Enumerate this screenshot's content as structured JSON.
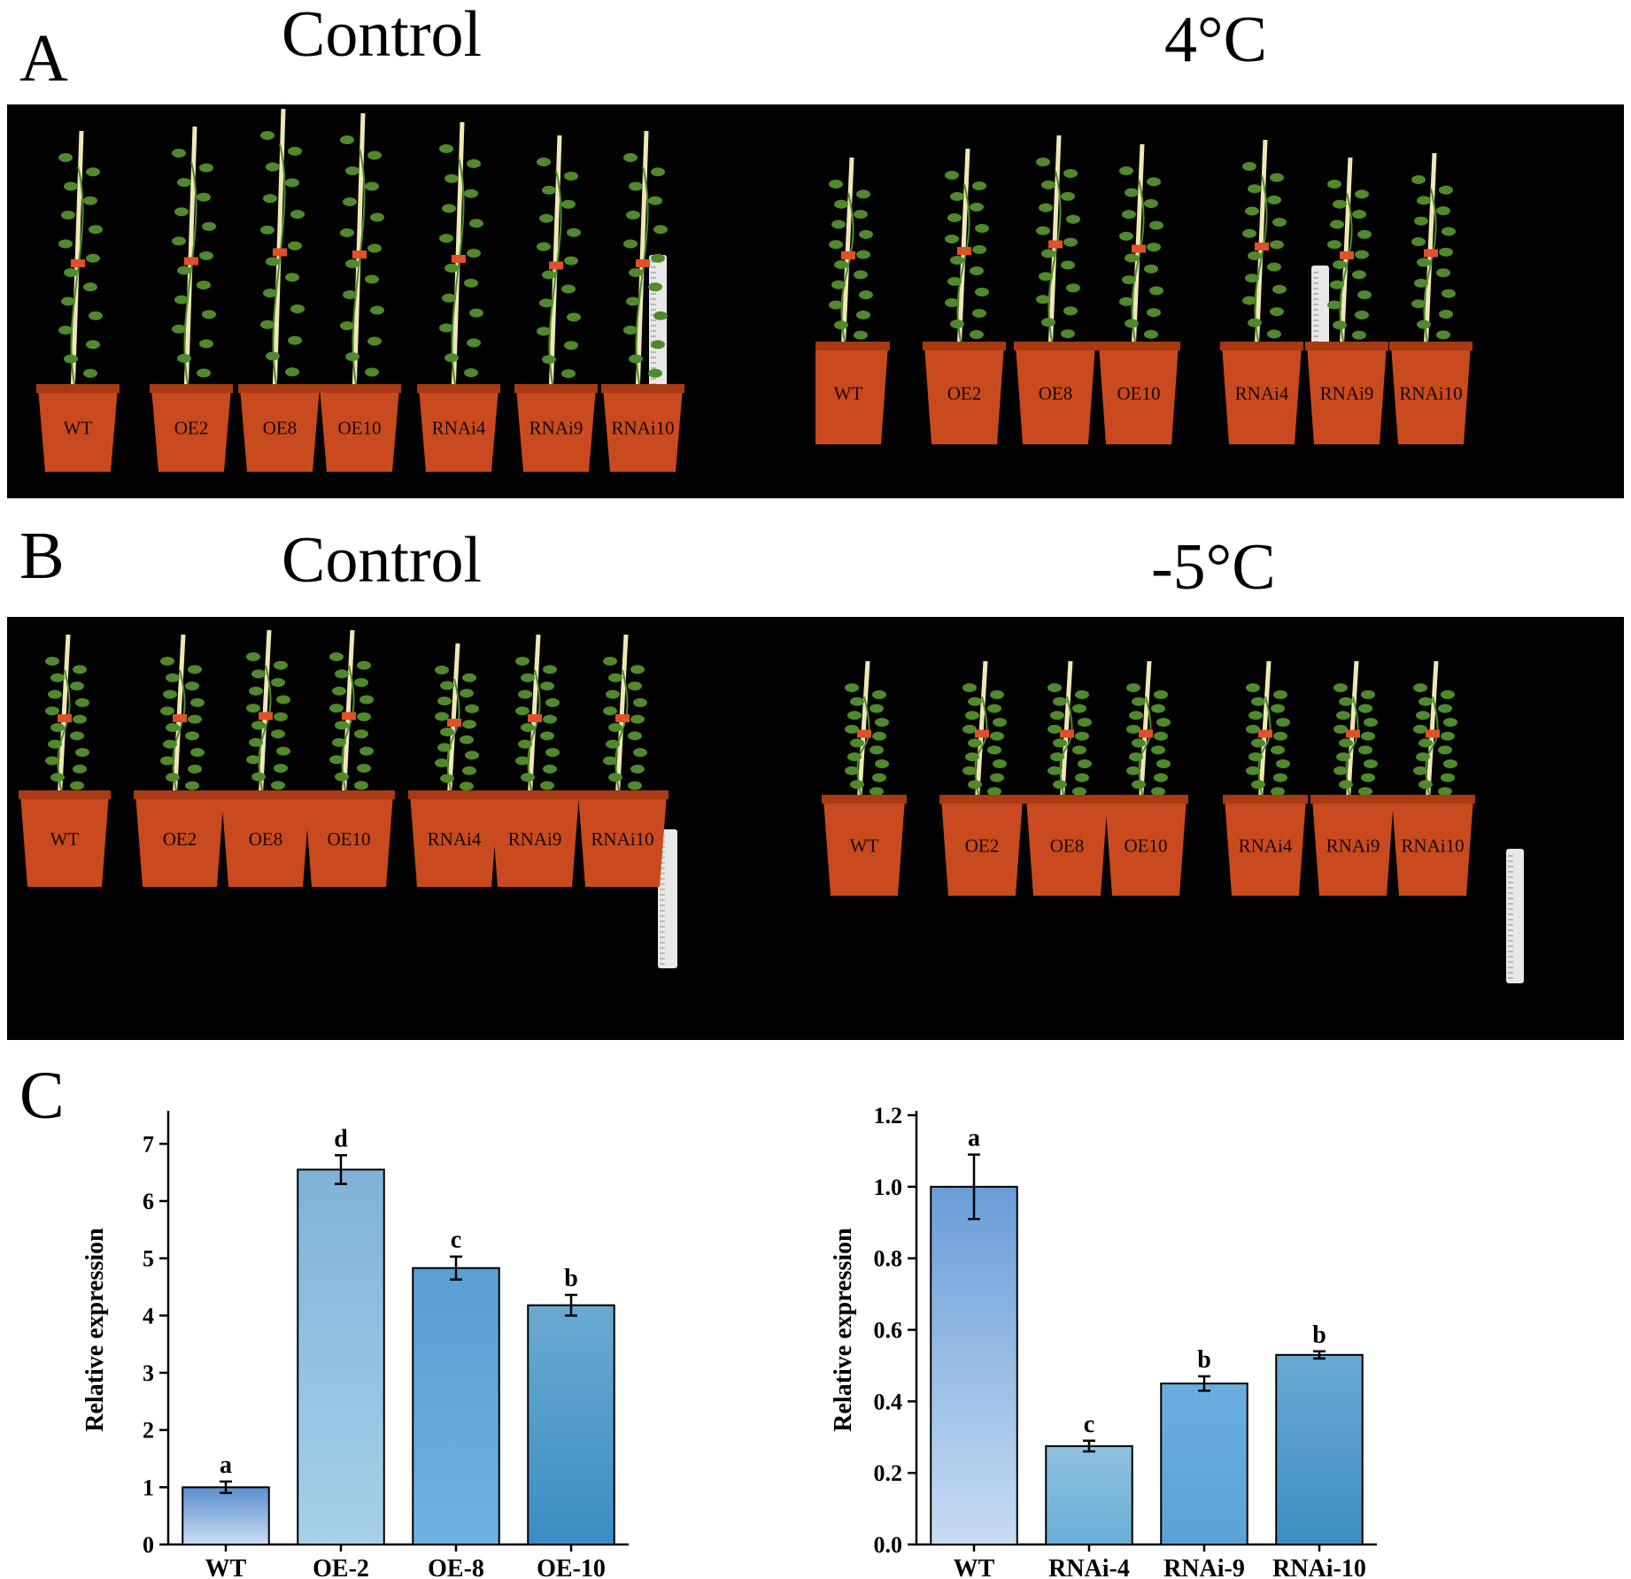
{
  "figure": {
    "panels": {
      "a": {
        "letter": "A",
        "left_title": "Control",
        "right_title": "4°C"
      },
      "b": {
        "letter": "B",
        "left_title": "Control",
        "right_title": "-5°C"
      },
      "c": {
        "letter": "C"
      }
    },
    "pot_labels": [
      "WT",
      "OE2",
      "OE8",
      "OE10",
      "RNAi4",
      "RNAi9",
      "RNAi10"
    ],
    "colors": {
      "background": "#020202",
      "pot": "#c94a1e",
      "pot_dark": "#a83a14",
      "stick": "#efe8b4",
      "leaf": "#4f8a2c",
      "tag": "#e0502a",
      "ruler": "#e8e8e8",
      "bar_stroke": "#000000"
    }
  },
  "chart_data": [
    {
      "type": "bar",
      "categories": [
        "WT",
        "OE-2",
        "OE-8",
        "OE-10"
      ],
      "values": [
        1.0,
        6.55,
        4.83,
        4.18
      ],
      "errors": [
        0.1,
        0.25,
        0.2,
        0.18
      ],
      "significance": [
        "a",
        "d",
        "c",
        "b"
      ],
      "ylabel": "Relative expression",
      "xlabel": "",
      "ylim": [
        0,
        7.5
      ],
      "yticks": [
        "0",
        "1",
        "2",
        "3",
        "4",
        "5",
        "6",
        "7"
      ],
      "ytick_values": [
        0,
        1,
        2,
        3,
        4,
        5,
        6,
        7
      ],
      "bar_colors": [
        [
          "#5b8fd0",
          "#c9dcf3"
        ],
        [
          "#7fb2d9",
          "#a6d0e8"
        ],
        [
          "#5a9fd4",
          "#6fb2e0"
        ],
        [
          "#6aaad1",
          "#3b8dc4"
        ]
      ]
    },
    {
      "type": "bar",
      "categories": [
        "WT",
        "RNAi-4",
        "RNAi-9",
        "RNAi-10"
      ],
      "values": [
        1.0,
        0.275,
        0.45,
        0.53
      ],
      "errors": [
        0.09,
        0.015,
        0.02,
        0.01
      ],
      "significance": [
        "a",
        "c",
        "b",
        "b"
      ],
      "ylabel": "Relative expression",
      "xlabel": "",
      "ylim": [
        0,
        1.2
      ],
      "yticks": [
        "0.0",
        "0.2",
        "0.4",
        "0.6",
        "0.8",
        "1.0",
        "1.2"
      ],
      "ytick_values": [
        0,
        0.2,
        0.4,
        0.6,
        0.8,
        1.0,
        1.2
      ],
      "bar_colors": [
        [
          "#6a9dd8",
          "#c7dcf3"
        ],
        [
          "#8ec0e0",
          "#6aaed6"
        ],
        [
          "#6aaee0",
          "#5aa4d8"
        ],
        [
          "#6aaad4",
          "#3d8ec4"
        ]
      ]
    }
  ]
}
